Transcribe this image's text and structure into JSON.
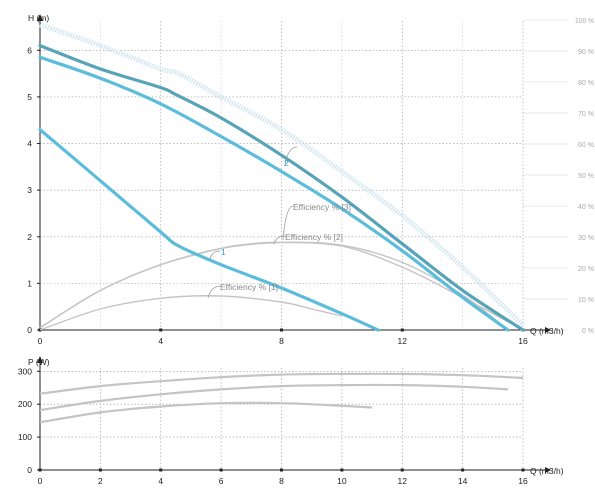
{
  "chart_data": [
    {
      "type": "line",
      "ylabel": "H (m)",
      "xlabel": "Q (m3/h)",
      "xlim": [
        0,
        16
      ],
      "ylim": [
        0,
        6.5
      ],
      "x_ticks": [
        "0",
        "4",
        "8",
        "12",
        "16"
      ],
      "y_ticks": [
        "0",
        "1",
        "2",
        "3",
        "4",
        "5",
        "6"
      ],
      "right_ticks": [
        "0 %",
        "10 %",
        "20 %",
        "30 %",
        "40 %",
        "50 %",
        "60 %",
        "70 %",
        "80 %",
        "90 %",
        "100 %"
      ],
      "grid": true,
      "head_series": [
        {
          "label": "1",
          "color": "#5bbcdc",
          "x": [
            0,
            2,
            4,
            4.6,
            6,
            8,
            10,
            11.2
          ],
          "y": [
            4.3,
            3.2,
            2.1,
            1.8,
            1.4,
            0.9,
            0.35,
            0
          ]
        },
        {
          "label": "",
          "color": "#5bbcdc",
          "x": [
            0,
            2,
            4,
            6,
            8,
            10,
            12,
            14,
            15.5
          ],
          "y": [
            5.85,
            5.4,
            4.85,
            4.15,
            3.4,
            2.6,
            1.7,
            0.7,
            0
          ]
        },
        {
          "label": "2",
          "color": "#57a3b8",
          "x": [
            0,
            2,
            4,
            4.5,
            6,
            8,
            10,
            12,
            14,
            16
          ],
          "y": [
            6.1,
            5.6,
            5.2,
            5.05,
            4.55,
            3.75,
            2.85,
            1.85,
            0.85,
            0
          ]
        }
      ],
      "max_efficiency_curve": {
        "color": "#cfe6f0",
        "x": [
          0,
          2,
          4,
          4.6,
          6,
          8,
          10,
          12,
          14,
          16
        ],
        "y": [
          6.55,
          6.1,
          5.6,
          5.5,
          5.0,
          4.3,
          3.4,
          2.45,
          1.35,
          0.1
        ]
      },
      "efficiency_series": [
        {
          "label": "Efficiency % [1]",
          "color": "#c4c4c4",
          "x": [
            0,
            2,
            4,
            6,
            8,
            9,
            10
          ],
          "y": [
            0,
            0.45,
            0.68,
            0.73,
            0.6,
            0.45,
            0.3
          ]
        },
        {
          "label": "Efficiency % [2]",
          "color": "#c4c4c4",
          "x": [
            0,
            2,
            4,
            6,
            8,
            10,
            12,
            14,
            15.5
          ],
          "y": [
            0.05,
            0.85,
            1.4,
            1.75,
            1.88,
            1.82,
            1.45,
            0.75,
            0
          ]
        },
        {
          "label": "Efficiency % [3]",
          "color": "#c4c4c4",
          "x": [
            0,
            2,
            4,
            6,
            7,
            8,
            10,
            12,
            14,
            16
          ],
          "y": [
            0.05,
            0.85,
            1.4,
            1.75,
            1.85,
            1.88,
            1.8,
            1.35,
            0.7,
            0
          ]
        }
      ]
    },
    {
      "type": "line",
      "ylabel": "P (W)",
      "xlabel": "Q (m3/h)",
      "xlim": [
        0,
        16
      ],
      "ylim": [
        0,
        310
      ],
      "x_ticks": [
        "0",
        "2",
        "4",
        "6",
        "8",
        "10",
        "12",
        "14",
        "16"
      ],
      "y_ticks": [
        "0",
        "100",
        "200",
        "300"
      ],
      "grid": true,
      "series": [
        {
          "color": "#c4c4c4",
          "x": [
            0,
            2,
            4,
            6,
            8,
            10,
            11
          ],
          "y": [
            145,
            175,
            193,
            203,
            203,
            195,
            190
          ]
        },
        {
          "color": "#c4c4c4",
          "x": [
            0,
            2,
            4,
            6,
            8,
            10,
            12,
            14,
            15.5
          ],
          "y": [
            182,
            210,
            230,
            245,
            255,
            258,
            258,
            253,
            245
          ]
        },
        {
          "color": "#c4c4c4",
          "x": [
            0,
            2,
            4,
            6,
            8,
            10,
            12,
            14,
            16
          ],
          "y": [
            232,
            255,
            270,
            282,
            290,
            292,
            292,
            288,
            280
          ]
        }
      ]
    }
  ]
}
